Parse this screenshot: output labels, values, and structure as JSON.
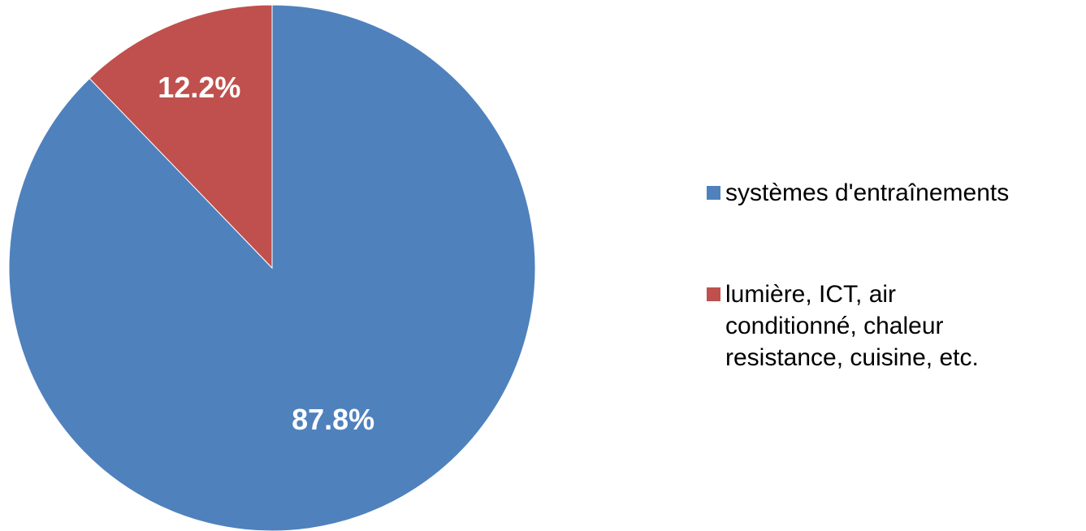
{
  "chart_data": {
    "type": "pie",
    "title": "",
    "start_angle_deg": 0,
    "direction": "clockwise",
    "legend_position": "right",
    "slices": [
      {
        "name": "systèmes d'entraînements",
        "value": 87.8,
        "label": "87.8%",
        "color": "#4F81BD"
      },
      {
        "name": "lumière, ICT, air\nconditionné, chaleur\nresistance, cuisine, etc.",
        "value": 12.2,
        "label": "12.2%",
        "color": "#C0504D"
      }
    ]
  }
}
